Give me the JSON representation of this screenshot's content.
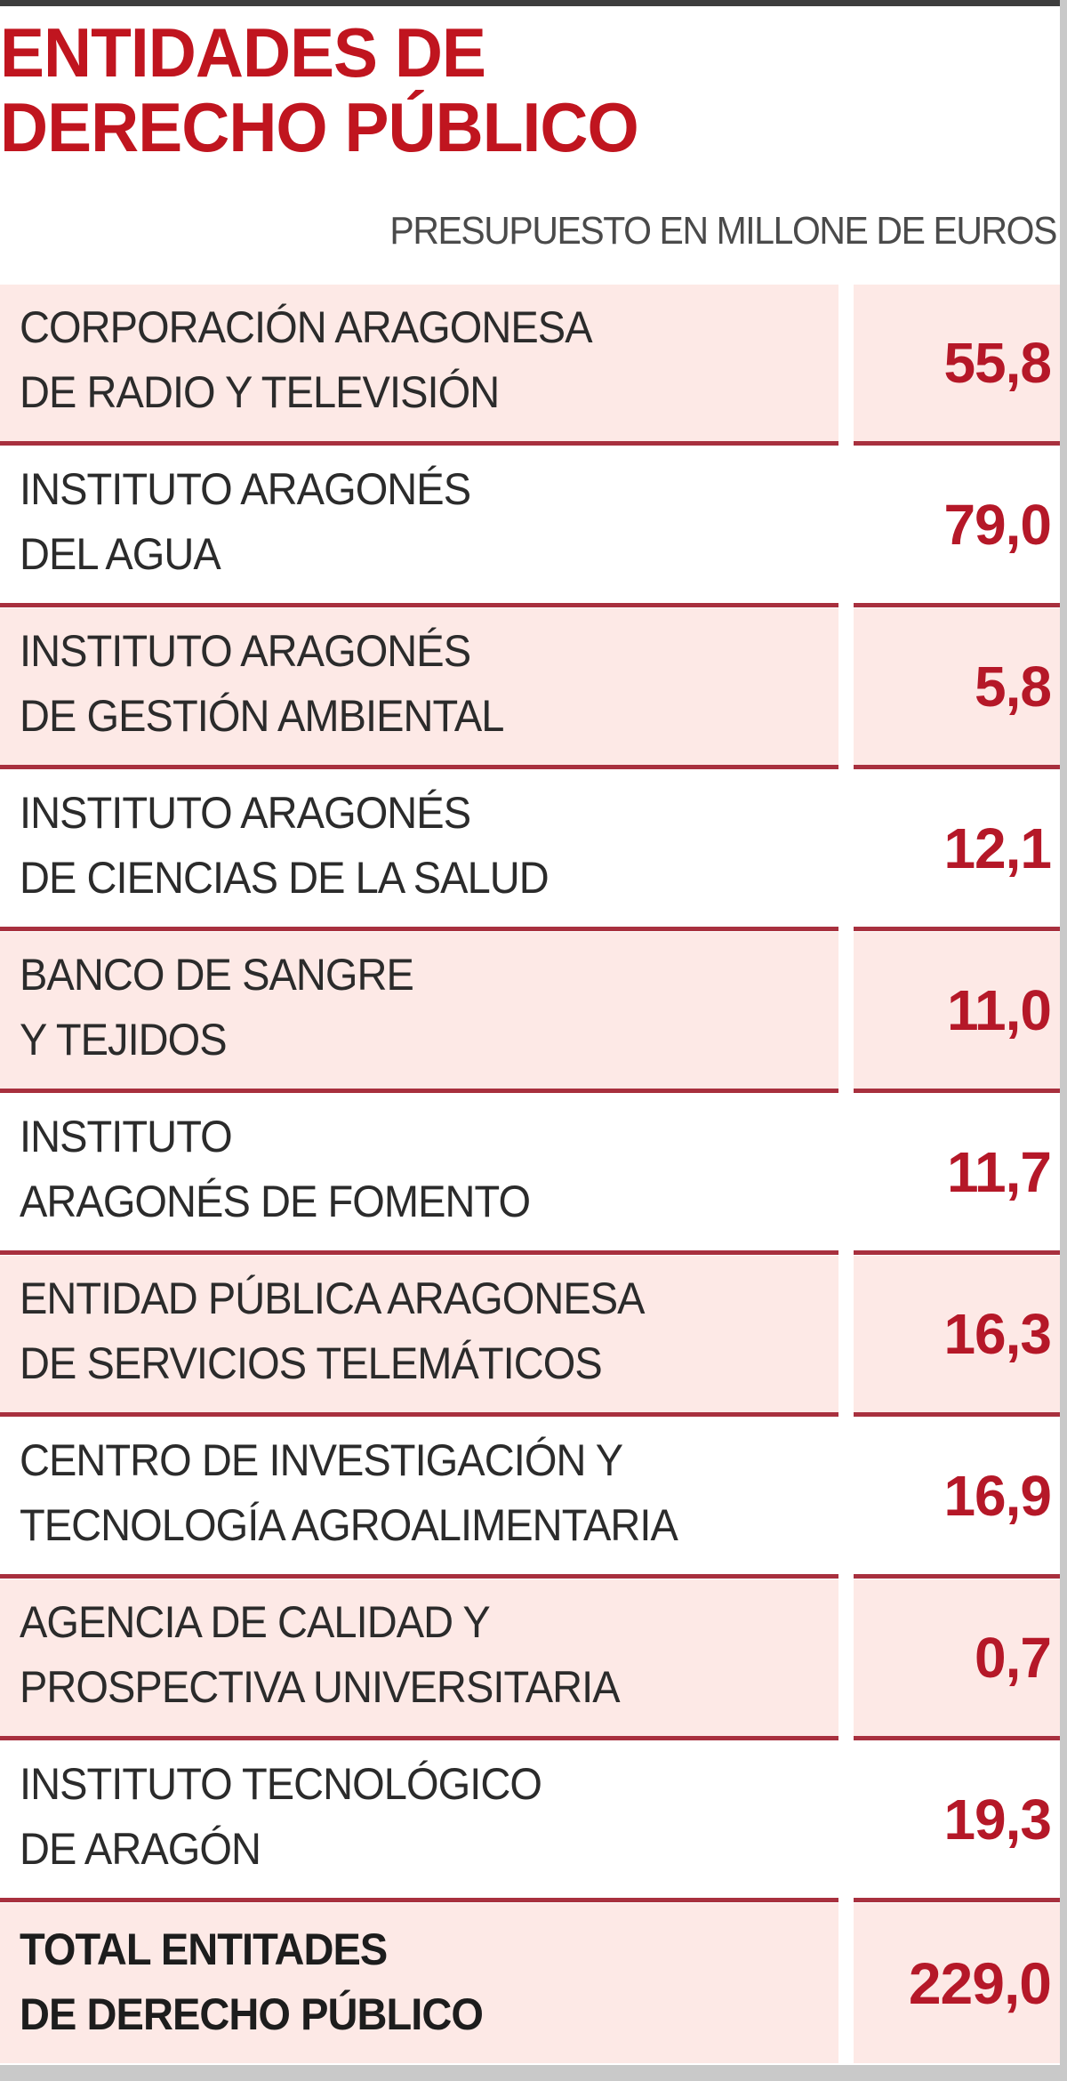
{
  "header": {
    "title": "ENTIDADES DE\nDERECHO PÚBLICO",
    "subtitle": "PRESUPUESTO EN MILLONE DE EUROS"
  },
  "colors": {
    "title_red": "#c0151f",
    "value_red": "#b51828",
    "row_pink": "#fde9e6",
    "separator": "#a8303e",
    "top_rule": "#3d3d3d"
  },
  "rows": [
    {
      "name": "CORPORACIÓN ARAGONESA\nDE RADIO Y TELEVISIÓN",
      "value": "55,8"
    },
    {
      "name": "INSTITUTO ARAGONÉS\nDEL AGUA",
      "value": "79,0"
    },
    {
      "name": "INSTITUTO ARAGONÉS\n DE GESTIÓN AMBIENTAL",
      "value": "5,8"
    },
    {
      "name": "INSTITUTO ARAGONÉS\nDE CIENCIAS DE LA SALUD",
      "value": "12,1"
    },
    {
      "name": "BANCO DE SANGRE\nY TEJIDOS",
      "value": "11,0"
    },
    {
      "name": "INSTITUTO\nARAGONÉS DE FOMENTO",
      "value": "11,7"
    },
    {
      "name": "ENTIDAD PÚBLICA ARAGONESA\nDE SERVICIOS TELEMÁTICOS",
      "value": "16,3"
    },
    {
      "name": "CENTRO DE INVESTIGACIÓN Y\nTECNOLOGÍA AGROALIMENTARIA",
      "value": "16,9"
    },
    {
      "name": "AGENCIA DE CALIDAD Y\nPROSPECTIVA UNIVERSITARIA",
      "value": "0,7"
    },
    {
      "name": "INSTITUTO TECNOLÓGICO\nDE ARAGÓN",
      "value": "19,3"
    }
  ],
  "total": {
    "name": "TOTAL ENTITADES\nDE DERECHO PÚBLICO",
    "value": "229,0"
  }
}
